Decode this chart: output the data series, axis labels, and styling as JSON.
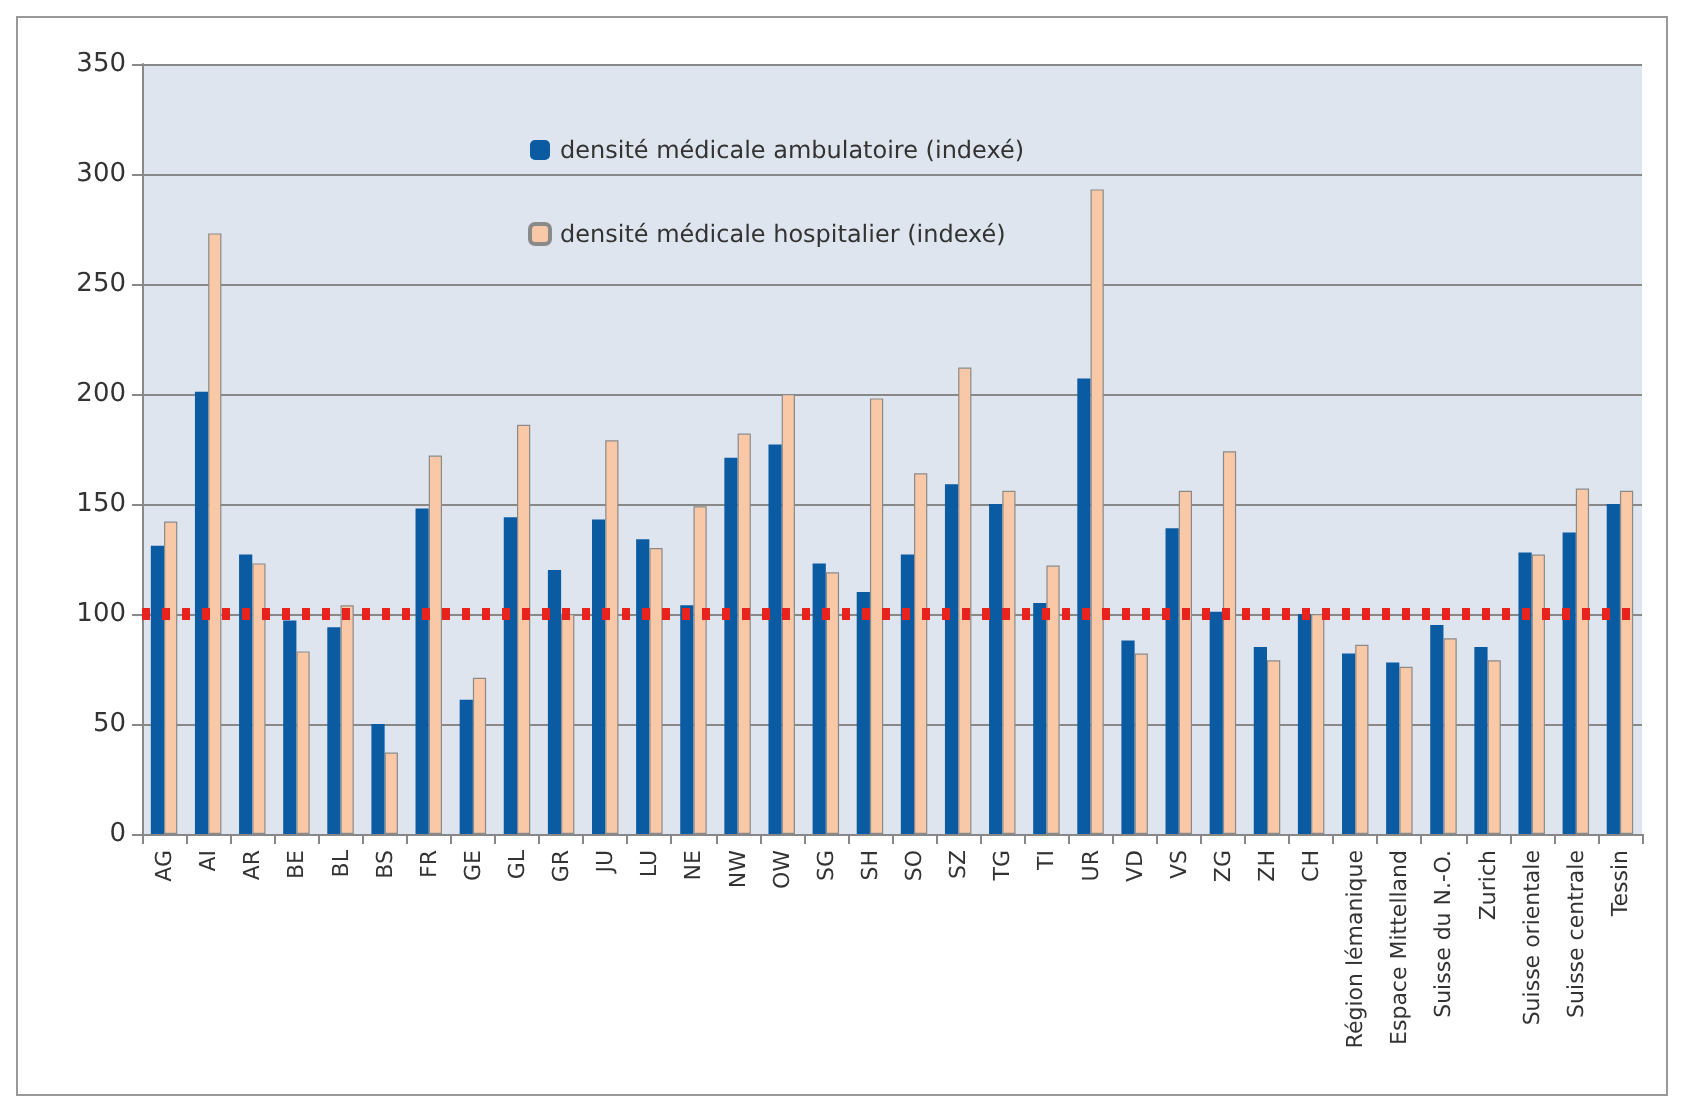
{
  "chart_data": {
    "type": "bar",
    "categories": [
      "AG",
      "AI",
      "AR",
      "BE",
      "BL",
      "BS",
      "FR",
      "GE",
      "GL",
      "GR",
      "JU",
      "LU",
      "NE",
      "NW",
      "OW",
      "SG",
      "SH",
      "SO",
      "SZ",
      "TG",
      "TI",
      "UR",
      "VD",
      "VS",
      "ZG",
      "ZH",
      "CH",
      "Région lémanique",
      "Espace Mittelland",
      "Suisse du N.-O.",
      "Zurich",
      "Suisse orientale",
      "Suisse centrale",
      "Tessin"
    ],
    "series": [
      {
        "name": "densité médicale ambulatoire (indexé)",
        "color": "#0b5ba3",
        "values": [
          131,
          201,
          127,
          97,
          94,
          50,
          148,
          61,
          144,
          120,
          143,
          134,
          104,
          171,
          177,
          123,
          110,
          127,
          159,
          150,
          105,
          207,
          88,
          139,
          101,
          85,
          100,
          82,
          78,
          95,
          85,
          128,
          137,
          150
        ]
      },
      {
        "name": "densité médicale hospitalier (indexé)",
        "color": "#f9c8a6",
        "values": [
          142,
          273,
          123,
          83,
          104,
          37,
          172,
          71,
          186,
          100,
          179,
          130,
          149,
          182,
          200,
          119,
          198,
          164,
          212,
          156,
          122,
          293,
          82,
          156,
          174,
          79,
          100,
          86,
          76,
          89,
          79,
          127,
          157,
          156
        ]
      }
    ],
    "ylim": [
      0,
      350
    ],
    "yticks": [
      0,
      50,
      100,
      150,
      200,
      250,
      300,
      350
    ],
    "ref_lines": [
      {
        "axis": "y",
        "value": 100,
        "color": "#e8231e",
        "line_style": "dotted"
      }
    ],
    "grid": "y",
    "legend": "top"
  }
}
